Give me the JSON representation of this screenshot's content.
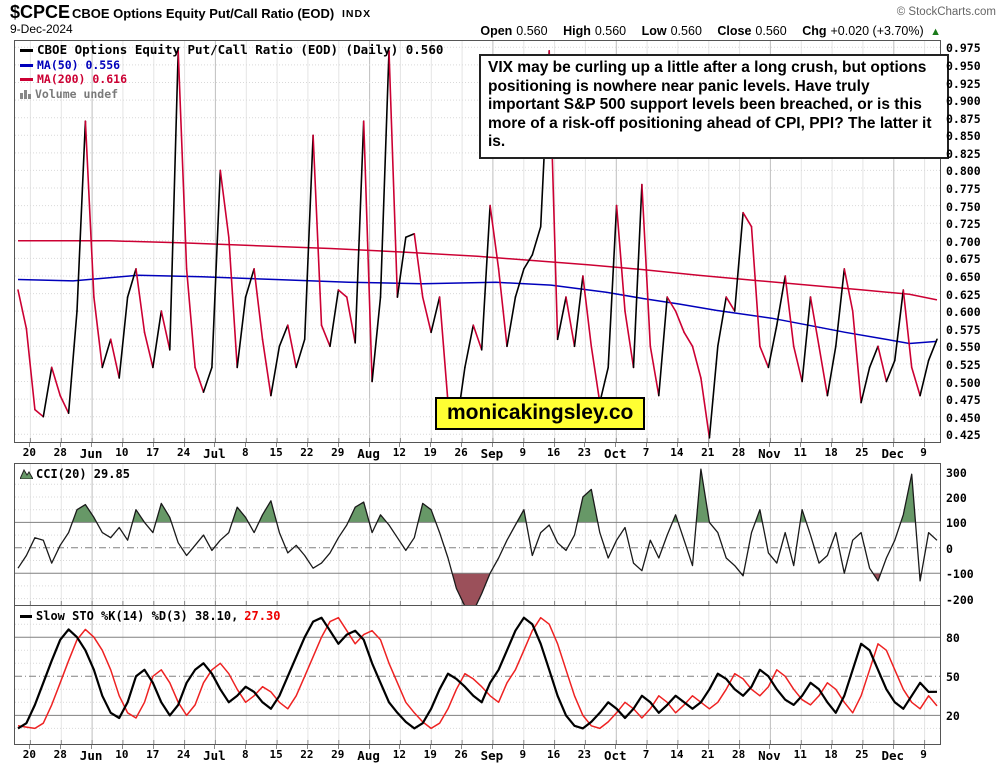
{
  "header": {
    "symbol": "$CPCE",
    "title": "CBOE Options Equity Put/Call Ratio (EOD)",
    "exchange": "INDX",
    "date": "9-Dec-2024",
    "copyright": "© StockCharts.com",
    "quote": {
      "open_label": "Open",
      "open": "0.560",
      "high_label": "High",
      "high": "0.560",
      "low_label": "Low",
      "low": "0.560",
      "close_label": "Close",
      "close": "0.560",
      "chg_label": "Chg",
      "chg": "+0.020 (+3.70%)",
      "direction": "up",
      "arrow": "▲"
    }
  },
  "annotation": "VIX may be curling up a little after a long crush, but options positioning is nowhere near panic levels. Have truly important S&P 500 support levels been breached, or is this more of a risk-off positioning ahead of CPI, PPI? The latter it is.",
  "watermark": "monicakingsley.co",
  "main_legend": {
    "price": "CBOE Options Equity Put/Call Ratio (EOD) (Daily) 0.560",
    "ma50": "MA(50) 0.556",
    "ma200": "MA(200) 0.616",
    "volume": "Volume undef"
  },
  "cci_legend": "CCI(20) 29.85",
  "sto_legend": {
    "main": "Slow STO %K(14) %D(3) 38.10,",
    "d_value": "27.30"
  },
  "colors": {
    "price_up": "#000000",
    "price_down": "#cc0033",
    "ma50": "#0000bb",
    "ma200": "#cc0033",
    "cci_line": "#1a1a1a",
    "cci_fill_up": "#679867",
    "cci_fill_down": "#9b505a",
    "sto_k": "#000000",
    "sto_d": "#ee2222",
    "grid_week": "#e4e4e4",
    "grid_month": "#bfbfbf",
    "grid_dot": "#d9d9d9",
    "threshold": "#808080",
    "watermark_bg": "#ffff33",
    "arrow_green": "#1a7a1a"
  },
  "chart_data": [
    {
      "type": "line",
      "name": "price_panel",
      "title": "CBOE Options Equity Put/Call Ratio (EOD) (Daily)",
      "last_close": 0.56,
      "ylim": [
        0.414,
        0.984
      ],
      "yticks": [
        "0.975",
        "0.950",
        "0.925",
        "0.900",
        "0.875",
        "0.850",
        "0.825",
        "0.800",
        "0.775",
        "0.750",
        "0.725",
        "0.700",
        "0.675",
        "0.650",
        "0.625",
        "0.600",
        "0.575",
        "0.550",
        "0.525",
        "0.500",
        "0.475",
        "0.450",
        "0.425"
      ],
      "xticks": [
        "20",
        "28",
        "Jun",
        "10",
        "17",
        "24",
        "Jul",
        "8",
        "15",
        "22",
        "29",
        "Aug",
        "12",
        "19",
        "26",
        "Sep",
        "9",
        "16",
        "23",
        "Oct",
        "7",
        "14",
        "21",
        "28",
        "Nov",
        "11",
        "18",
        "25",
        "Dec",
        "9"
      ],
      "month_tick_indices": [
        2,
        6,
        11,
        15,
        19,
        24,
        28
      ],
      "series": [
        {
          "name": "CPCE two-color price line",
          "values": [
            0.63,
            0.575,
            0.46,
            0.45,
            0.52,
            0.48,
            0.455,
            0.6,
            0.87,
            0.62,
            0.52,
            0.56,
            0.505,
            0.62,
            0.66,
            0.57,
            0.52,
            0.6,
            0.545,
            0.97,
            0.66,
            0.52,
            0.485,
            0.52,
            0.8,
            0.705,
            0.52,
            0.62,
            0.66,
            0.56,
            0.48,
            0.55,
            0.58,
            0.52,
            0.56,
            0.85,
            0.58,
            0.55,
            0.63,
            0.62,
            0.555,
            0.87,
            0.5,
            0.62,
            0.97,
            0.62,
            0.705,
            0.71,
            0.62,
            0.57,
            0.62,
            0.47,
            0.435,
            0.52,
            0.58,
            0.545,
            0.75,
            0.66,
            0.55,
            0.62,
            0.66,
            0.68,
            0.72,
            0.97,
            0.56,
            0.62,
            0.55,
            0.65,
            0.55,
            0.47,
            0.52,
            0.75,
            0.6,
            0.52,
            0.78,
            0.55,
            0.48,
            0.62,
            0.6,
            0.57,
            0.55,
            0.505,
            0.42,
            0.55,
            0.62,
            0.6,
            0.74,
            0.72,
            0.55,
            0.52,
            0.58,
            0.65,
            0.55,
            0.5,
            0.62,
            0.55,
            0.48,
            0.55,
            0.66,
            0.6,
            0.47,
            0.52,
            0.55,
            0.5,
            0.53,
            0.63,
            0.52,
            0.48,
            0.53,
            0.56
          ]
        },
        {
          "name": "MA(50)",
          "last": 0.556,
          "points": [
            [
              0,
              0.645
            ],
            [
              0.06,
              0.643
            ],
            [
              0.13,
              0.651
            ],
            [
              0.2,
              0.649
            ],
            [
              0.28,
              0.645
            ],
            [
              0.36,
              0.641
            ],
            [
              0.44,
              0.639
            ],
            [
              0.52,
              0.641
            ],
            [
              0.58,
              0.637
            ],
            [
              0.64,
              0.627
            ],
            [
              0.68,
              0.618
            ],
            [
              0.72,
              0.61
            ],
            [
              0.76,
              0.601
            ],
            [
              0.82,
              0.59
            ],
            [
              0.86,
              0.58
            ],
            [
              0.9,
              0.57
            ],
            [
              0.94,
              0.561
            ],
            [
              0.97,
              0.554
            ],
            [
              1,
              0.557
            ]
          ]
        },
        {
          "name": "MA(200)",
          "last": 0.616,
          "points": [
            [
              0,
              0.7
            ],
            [
              0.1,
              0.7
            ],
            [
              0.18,
              0.697
            ],
            [
              0.26,
              0.693
            ],
            [
              0.34,
              0.689
            ],
            [
              0.42,
              0.684
            ],
            [
              0.5,
              0.678
            ],
            [
              0.56,
              0.672
            ],
            [
              0.62,
              0.666
            ],
            [
              0.68,
              0.659
            ],
            [
              0.74,
              0.651
            ],
            [
              0.8,
              0.644
            ],
            [
              0.86,
              0.637
            ],
            [
              0.92,
              0.63
            ],
            [
              0.97,
              0.624
            ],
            [
              1,
              0.616
            ]
          ]
        }
      ]
    },
    {
      "type": "line",
      "name": "cci_panel",
      "label": "CCI(20)",
      "last": 29.85,
      "ylim": [
        -225,
        330
      ],
      "yticks": [
        "300",
        "200",
        "100",
        "0",
        "-100",
        "-200"
      ],
      "upper_threshold": 100,
      "mid_threshold": 0,
      "lower_threshold": -100,
      "values": [
        -80,
        -30,
        40,
        30,
        -60,
        10,
        60,
        150,
        170,
        120,
        60,
        40,
        80,
        30,
        150,
        100,
        60,
        175,
        120,
        20,
        -30,
        10,
        50,
        -10,
        30,
        60,
        160,
        120,
        60,
        130,
        185,
        60,
        -20,
        10,
        -30,
        -80,
        -60,
        -20,
        40,
        90,
        160,
        180,
        60,
        130,
        90,
        40,
        -10,
        40,
        175,
        150,
        60,
        -40,
        -160,
        -230,
        -250,
        -180,
        -100,
        -40,
        30,
        90,
        150,
        -30,
        60,
        90,
        20,
        -10,
        50,
        200,
        230,
        60,
        -40,
        30,
        80,
        -60,
        -90,
        30,
        -40,
        50,
        130,
        30,
        -70,
        310,
        100,
        60,
        -40,
        -70,
        -110,
        60,
        150,
        -20,
        -60,
        60,
        -70,
        150,
        50,
        -60,
        -30,
        60,
        -100,
        30,
        60,
        -80,
        -130,
        -40,
        30,
        130,
        290,
        -130,
        60,
        29.85
      ]
    },
    {
      "type": "line",
      "name": "sto_panel",
      "label": "Slow STO %K(14) %D(3)",
      "k_last": 38.1,
      "d_last": 27.3,
      "ylim": [
        -2,
        104
      ],
      "yticks": [
        "80",
        "50",
        "20"
      ],
      "upper_threshold": 80,
      "mid_threshold": 50,
      "lower_threshold": 20,
      "series": [
        {
          "name": "%K",
          "values": [
            10,
            14,
            28,
            45,
            62,
            78,
            86,
            80,
            70,
            55,
            35,
            22,
            18,
            30,
            50,
            55,
            45,
            30,
            20,
            28,
            45,
            55,
            60,
            52,
            40,
            30,
            35,
            42,
            38,
            30,
            25,
            35,
            50,
            65,
            80,
            92,
            95,
            85,
            75,
            82,
            85,
            78,
            60,
            45,
            30,
            22,
            15,
            10,
            14,
            25,
            40,
            52,
            48,
            42,
            35,
            30,
            45,
            55,
            70,
            85,
            95,
            90,
            75,
            55,
            35,
            20,
            12,
            10,
            15,
            22,
            30,
            25,
            18,
            25,
            35,
            30,
            22,
            28,
            35,
            30,
            25,
            30,
            40,
            52,
            48,
            40,
            35,
            42,
            55,
            50,
            40,
            32,
            28,
            35,
            45,
            40,
            30,
            22,
            35,
            55,
            75,
            70,
            55,
            40,
            30,
            25,
            35,
            45,
            38,
            38.1
          ]
        },
        {
          "name": "%D",
          "values": [
            12,
            11,
            10,
            14,
            28,
            45,
            62,
            78,
            86,
            80,
            70,
            55,
            35,
            22,
            18,
            30,
            50,
            55,
            45,
            30,
            20,
            28,
            45,
            55,
            60,
            52,
            40,
            30,
            35,
            42,
            38,
            30,
            25,
            35,
            50,
            65,
            80,
            92,
            95,
            85,
            75,
            82,
            85,
            78,
            60,
            45,
            30,
            22,
            15,
            10,
            14,
            25,
            40,
            52,
            48,
            42,
            35,
            30,
            45,
            55,
            70,
            85,
            95,
            90,
            75,
            55,
            35,
            20,
            12,
            10,
            15,
            22,
            30,
            25,
            18,
            25,
            35,
            30,
            22,
            28,
            35,
            30,
            25,
            30,
            40,
            52,
            48,
            40,
            35,
            42,
            55,
            50,
            40,
            32,
            28,
            35,
            45,
            40,
            30,
            22,
            35,
            55,
            75,
            70,
            55,
            40,
            30,
            25,
            35,
            27.3
          ]
        }
      ]
    }
  ]
}
